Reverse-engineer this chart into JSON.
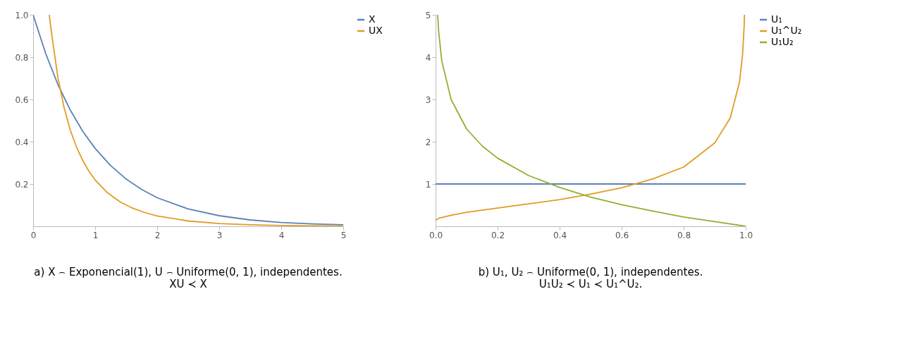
{
  "chart_data": [
    {
      "type": "line",
      "xlim": [
        0,
        5
      ],
      "ylim": [
        0,
        1
      ],
      "xticks": [
        0,
        1,
        2,
        3,
        4,
        5
      ],
      "yticks": [
        0.2,
        0.4,
        0.6,
        0.8,
        {
          "value": 1,
          "label": "1.0"
        }
      ],
      "legend": "right",
      "series": [
        {
          "name": "X",
          "color": "#5e81b5",
          "x": [
            0,
            0.2,
            0.4,
            0.6,
            0.8,
            1,
            1.25,
            1.5,
            1.75,
            2,
            2.5,
            3,
            3.5,
            4,
            4.5,
            5
          ],
          "values": [
            1,
            0.819,
            0.67,
            0.549,
            0.449,
            0.368,
            0.287,
            0.223,
            0.174,
            0.135,
            0.082,
            0.05,
            0.03,
            0.018,
            0.011,
            0.007
          ]
        },
        {
          "name": "UX",
          "color": "#e19c24",
          "x": [
            0.26,
            0.3,
            0.4,
            0.5,
            0.6,
            0.7,
            0.8,
            0.9,
            1,
            1.2,
            1.4,
            1.6,
            1.8,
            2,
            2.5,
            3,
            3.5,
            4,
            4.5,
            5
          ],
          "values": [
            1,
            0.906,
            0.702,
            0.56,
            0.454,
            0.374,
            0.311,
            0.26,
            0.219,
            0.158,
            0.116,
            0.086,
            0.065,
            0.049,
            0.025,
            0.013,
            0.007,
            0.004,
            0.002,
            0.001
          ]
        }
      ],
      "annotations": [
        "a) X ⌢ Exponencial(1), U ⌢ Uniforme(0, 1), independentes.",
        "XU ≺ X"
      ]
    },
    {
      "type": "line",
      "xlim": [
        0,
        1
      ],
      "ylim": [
        0,
        5
      ],
      "xticks": [
        {
          "value": 0,
          "label": "0.0"
        },
        0.2,
        0.4,
        0.6,
        0.8,
        {
          "value": 1,
          "label": "1.0"
        }
      ],
      "yticks": [
        1,
        2,
        3,
        4,
        5
      ],
      "legend": "right",
      "series": [
        {
          "name": "U₁",
          "color": "#5e81b5",
          "x": [
            0,
            1
          ],
          "values": [
            1,
            1
          ]
        },
        {
          "name": "U₁^U₂",
          "color": "#e19c24",
          "x": [
            0.001,
            0.01,
            0.05,
            0.1,
            0.2,
            0.3,
            0.4,
            0.5,
            0.6,
            0.7,
            0.8,
            0.9,
            0.95,
            0.98,
            0.99,
            0.995,
            0.996
          ],
          "values": [
            0.14,
            0.19,
            0.26,
            0.33,
            0.43,
            0.53,
            0.63,
            0.76,
            0.91,
            1.12,
            1.4,
            1.97,
            2.56,
            3.41,
            4.07,
            4.74,
            5
          ]
        },
        {
          "name": "U₁U₂",
          "color": "#8fb032",
          "x": [
            0.0067,
            0.01,
            0.02,
            0.05,
            0.1,
            0.15,
            0.2,
            0.3,
            0.4,
            0.5,
            0.6,
            0.7,
            0.8,
            0.9,
            1
          ],
          "values": [
            5,
            4.6,
            3.91,
            3,
            2.3,
            1.9,
            1.61,
            1.2,
            0.92,
            0.69,
            0.51,
            0.36,
            0.22,
            0.11,
            0
          ]
        }
      ],
      "annotations": [
        "b) U₁, U₂ ⌢ Uniforme(0, 1), independentes.",
        "U₁U₂ ≺ U₁ ≺ U₁^U₂."
      ]
    }
  ]
}
